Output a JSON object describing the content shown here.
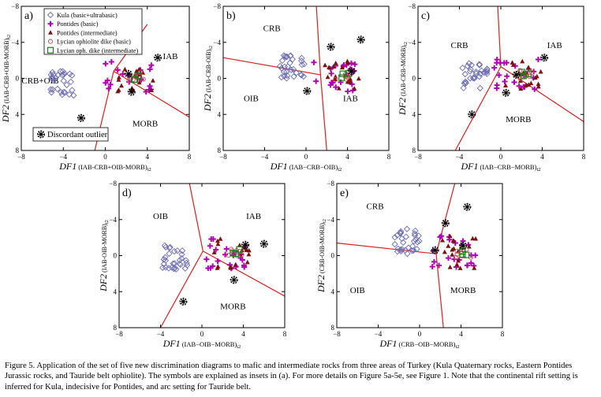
{
  "figure": {
    "legend": [
      {
        "label": "Kula (basic+ultrabasic)",
        "symbol": "diamond",
        "color": "#6b6bb0"
      },
      {
        "label": "Pontides (basic)",
        "symbol": "plus",
        "color": "#b000b0"
      },
      {
        "label": "Pontides (intermediate)",
        "symbol": "triangle",
        "color": "#7a1212"
      },
      {
        "label": "Lycian ophiolite dike (basic)",
        "symbol": "circle",
        "color": "#c05050"
      },
      {
        "label": "Lycian oph. dike (intermediate)",
        "symbol": "square",
        "color": "#1c7a1c"
      }
    ],
    "outlier_label": "Discordant outlier",
    "colors": {
      "boundary": "#d42020",
      "kula": "#6b6bb0",
      "pontides_basic": "#b000b0",
      "pontides_int": "#7a1212",
      "lycian_basic": "#c05050",
      "lycian_int": "#1c7a1c"
    },
    "panels": [
      {
        "id": "a",
        "label": "a)",
        "xlabel_main": "DF1",
        "xlabel_sub": "(IAB-CRB+OIB-MORB)",
        "xlabel_tail": "t2",
        "ylabel_main": "DF2",
        "ylabel_sub": "(IAB-CRB+OIB-MORB)",
        "ylabel_tail": "t2",
        "ticks": [
          "−8",
          "−4",
          "0",
          "4",
          "8"
        ],
        "fields": [
          {
            "text": "CRB+OIB",
            "x": -6.2,
            "y": -0.2
          },
          {
            "text": "IAB",
            "x": 6.2,
            "y": 2.5
          },
          {
            "text": "MORB",
            "x": 3.8,
            "y": -5.0
          }
        ],
        "boundaries": [
          [
            [
              0.8,
              0.8
            ],
            [
              -1,
              -8
            ]
          ],
          [
            [
              0.8,
              0.8
            ],
            [
              8,
              -4.3
            ]
          ],
          [
            [
              0.8,
              0.8
            ],
            [
              4,
              6
            ]
          ]
        ]
      },
      {
        "id": "b",
        "label": "b)",
        "xlabel_main": "DF1",
        "xlabel_sub": "(IAB−CRB−OIB)",
        "xlabel_tail": "t2",
        "ylabel_main": "DF2",
        "ylabel_sub": "(IAB-CRB-OIB)",
        "ylabel_tail": "t2",
        "ticks": [
          "−8",
          "−4",
          "0",
          "4",
          "8"
        ],
        "fields": [
          {
            "text": "CRB",
            "x": -3.3,
            "y": 5.6
          },
          {
            "text": "OIB",
            "x": -5.3,
            "y": -2.2
          },
          {
            "text": "IAB",
            "x": 4.3,
            "y": -2.2
          }
        ],
        "boundaries": [
          [
            [
              1.4,
              0.4
            ],
            [
              1,
              8
            ]
          ],
          [
            [
              1.4,
              0.4
            ],
            [
              -8,
              2.3
            ]
          ],
          [
            [
              1.4,
              0.4
            ],
            [
              2.0,
              -8
            ]
          ]
        ]
      },
      {
        "id": "c",
        "label": "c)",
        "xlabel_main": "DF1",
        "xlabel_sub": "(IAB−CRB−MORB)",
        "xlabel_tail": "t2",
        "ylabel_main": "DF2",
        "ylabel_sub": "(IAB-CRB-MORB)",
        "ylabel_tail": "t2",
        "ticks": [
          "−8",
          "−4",
          "0",
          "4",
          "8"
        ],
        "fields": [
          {
            "text": "CRB",
            "x": -4.0,
            "y": 3.7
          },
          {
            "text": "IAB",
            "x": 5.2,
            "y": 3.7
          },
          {
            "text": "MORB",
            "x": 1.7,
            "y": -4.5
          }
        ],
        "boundaries": [
          [
            [
              0,
              1.3
            ],
            [
              -0.3,
              8
            ]
          ],
          [
            [
              0,
              1.3
            ],
            [
              -4.4,
              -8
            ]
          ],
          [
            [
              0,
              1.3
            ],
            [
              8,
              -4.8
            ]
          ]
        ]
      },
      {
        "id": "d",
        "label": "d)",
        "xlabel_main": "DF1",
        "xlabel_sub": "(IAB−OIB−MORB)",
        "xlabel_tail": "t2",
        "ylabel_main": "DF2",
        "ylabel_sub": "(IAB-OIB-MORB)",
        "ylabel_tail": "t2",
        "ticks": [
          "−8",
          "−4",
          "0",
          "4",
          "8"
        ],
        "fields": [
          {
            "text": "OIB",
            "x": -4.0,
            "y": 4.4
          },
          {
            "text": "IAB",
            "x": 5.0,
            "y": 4.4
          },
          {
            "text": "MORB",
            "x": 3.0,
            "y": -5.6
          }
        ],
        "boundaries": [
          [
            [
              0.1,
              0.5
            ],
            [
              -1.2,
              8
            ]
          ],
          [
            [
              0.1,
              0.5
            ],
            [
              -4.0,
              -8
            ]
          ],
          [
            [
              0.1,
              0.5
            ],
            [
              8,
              -4.5
            ]
          ]
        ]
      },
      {
        "id": "e",
        "label": "e)",
        "xlabel_main": "DF1",
        "xlabel_sub": "(CRB−OIB−MORB)",
        "xlabel_tail": "t2",
        "ylabel_main": "DF2",
        "ylabel_sub": "(CRB-OIB-MORB)",
        "ylabel_tail": "t2",
        "ticks": [
          "−8",
          "−4",
          "0",
          "4",
          "8"
        ],
        "fields": [
          {
            "text": "CRB",
            "x": -4.3,
            "y": 5.5
          },
          {
            "text": "OIB",
            "x": -6.0,
            "y": -3.8
          },
          {
            "text": "MORB",
            "x": 4.2,
            "y": -3.8
          }
        ],
        "boundaries": [
          [
            [
              1.6,
              0.2
            ],
            [
              3.4,
              8
            ]
          ],
          [
            [
              1.6,
              0.2
            ],
            [
              -8,
              1.4
            ]
          ],
          [
            [
              1.6,
              0.2
            ],
            [
              2.3,
              -8
            ]
          ]
        ]
      }
    ]
  },
  "caption": "Figure 5. Application of the set of five new discrimination diagrams to mafic and intermediate rocks from three areas of Turkey (Kula Quaternary rocks, Eastern Pontides Jurassic rocks, and Tauride belt ophiolite). The symbols are explained as insets in (a). For more details on Figure 5a-5e, see Figure 1. Note that the continental rift setting is inferred for Kula, indecisive for Pontides, and arc setting for Tauride belt."
}
